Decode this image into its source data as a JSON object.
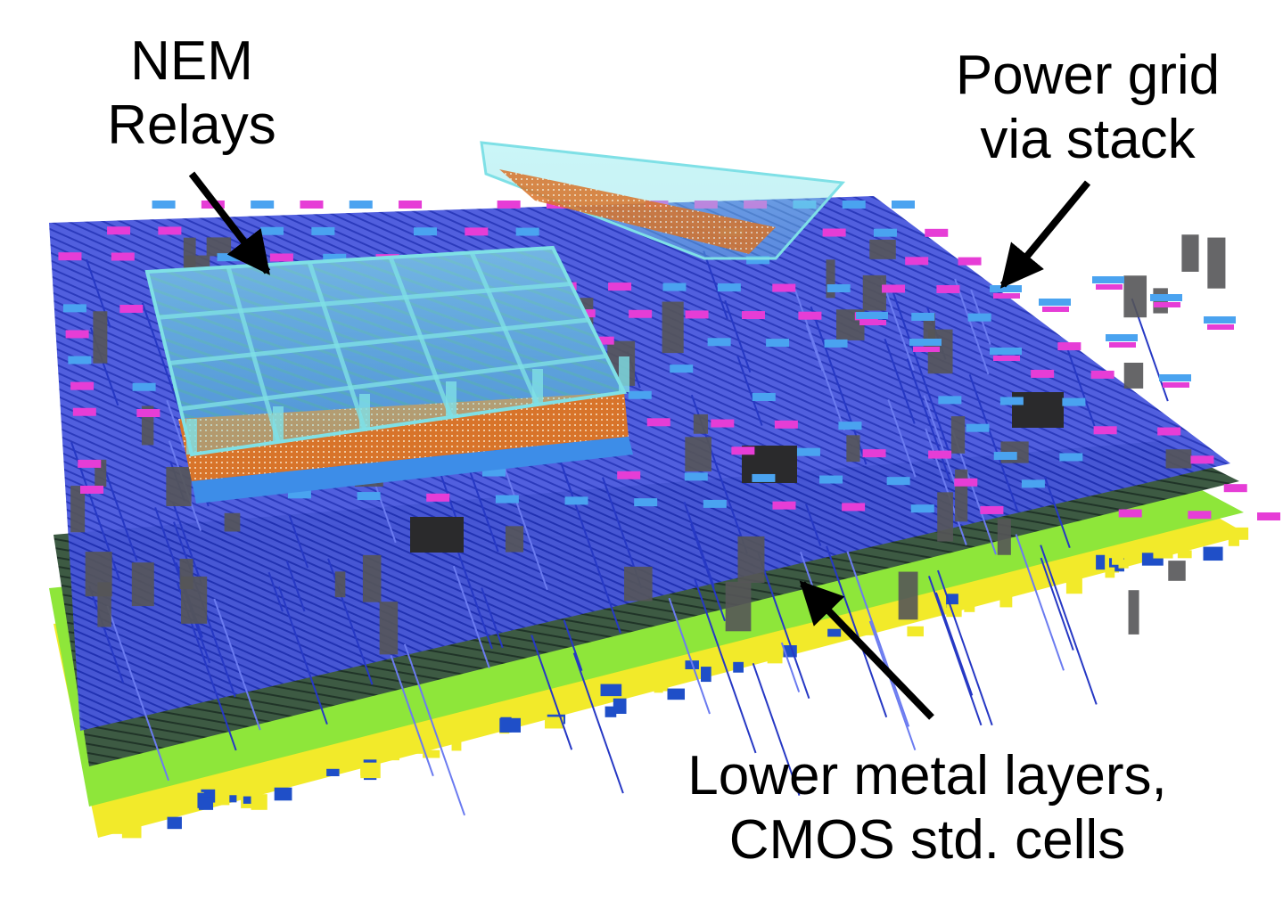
{
  "labels": {
    "nem_relays": [
      "NEM",
      "Relays"
    ],
    "power_grid": [
      "Power grid",
      "via stack"
    ],
    "lower_metal": [
      "Lower metal layers,",
      "CMOS std. cells"
    ]
  },
  "colors": {
    "metal_blue": "#3a4fd8",
    "via_pink": "#e63dd6",
    "via_light_blue": "#4aa3f0",
    "relay_cyan": "#7fe0e6",
    "relay_orange": "#d8742a",
    "yellow_layer": "#f2ea2a",
    "green_layer": "#8ee63a",
    "dark_green_layer": "#2f4a3a",
    "via_gray": "#555558",
    "label_text": "#000000"
  }
}
